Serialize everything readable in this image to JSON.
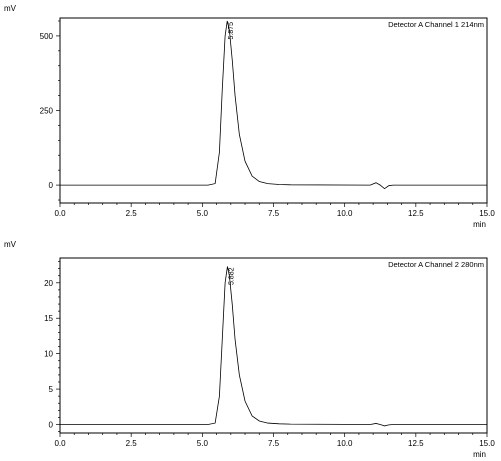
{
  "chart_data": [
    {
      "type": "line",
      "ylabel": "mV",
      "xlabel": "min",
      "legend": "Detector A Channel 1 214nm",
      "xlim": [
        0,
        15
      ],
      "ylim": [
        -60,
        560
      ],
      "x_ticks": [
        "0.0",
        "2.5",
        "5.0",
        "7.5",
        "10.0",
        "12.5",
        "15.0"
      ],
      "y_ticks": [
        "0",
        "250",
        "500"
      ],
      "y_tick_values": [
        0,
        250,
        500
      ],
      "peak_label": "5.875",
      "series": [
        {
          "x": [
            0,
            5.2,
            5.45,
            5.6,
            5.7,
            5.8,
            5.875,
            5.95,
            6.05,
            6.15,
            6.3,
            6.5,
            6.75,
            7.0,
            7.3,
            7.7,
            8.1,
            10.9,
            11.1,
            11.25,
            11.4,
            11.55,
            11.7,
            15
          ],
          "y": [
            0,
            0,
            5,
            110,
            320,
            500,
            550,
            520,
            420,
            300,
            170,
            80,
            30,
            12,
            5,
            2,
            1,
            0,
            8,
            0,
            -12,
            -2,
            0,
            0
          ]
        }
      ]
    },
    {
      "type": "line",
      "ylabel": "mV",
      "xlabel": "min",
      "legend": "Detector A Channel 2 280nm",
      "xlim": [
        0,
        15
      ],
      "ylim": [
        -1.2,
        23.5
      ],
      "x_ticks": [
        "0.0",
        "2.5",
        "5.0",
        "7.5",
        "10.0",
        "12.5",
        "15.0"
      ],
      "y_ticks": [
        "0",
        "5",
        "10",
        "15",
        "20"
      ],
      "y_tick_values": [
        0,
        5,
        10,
        15,
        20
      ],
      "peak_label": "5.882",
      "series": [
        {
          "x": [
            0,
            5.2,
            5.45,
            5.6,
            5.7,
            5.8,
            5.882,
            5.95,
            6.05,
            6.15,
            6.3,
            6.5,
            6.75,
            7.0,
            7.3,
            7.7,
            8.1,
            10.9,
            11.1,
            11.25,
            11.4,
            11.55,
            11.7,
            15
          ],
          "y": [
            0,
            0,
            0.2,
            4,
            12,
            20,
            22.3,
            21,
            17,
            12,
            7,
            3.3,
            1.2,
            0.5,
            0.2,
            0.1,
            0.05,
            0,
            0.15,
            0,
            -0.2,
            -0.05,
            0,
            0
          ]
        }
      ]
    }
  ]
}
